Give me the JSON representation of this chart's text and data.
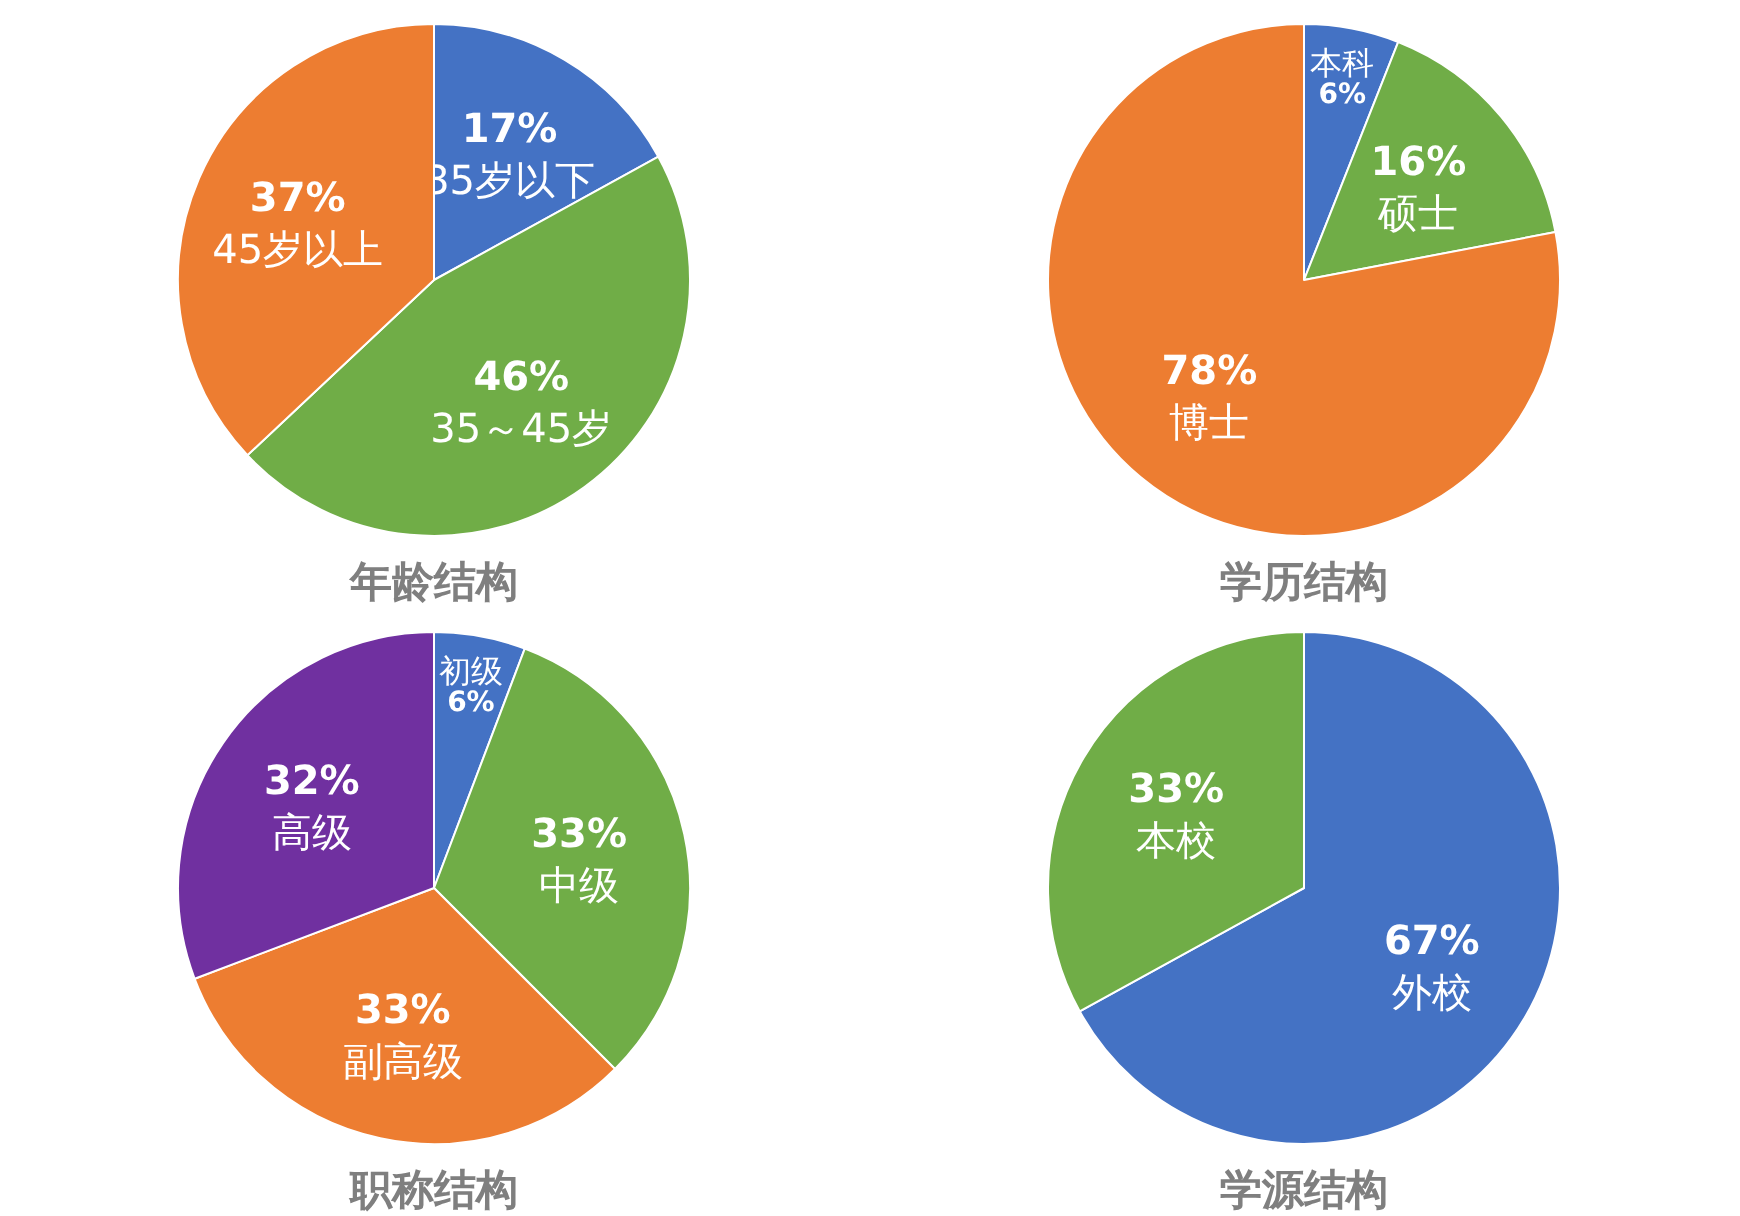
{
  "chart_data": [
    {
      "type": "pie",
      "title": "年龄结构",
      "categories": [
        "35岁以下",
        "35～45岁",
        "45岁以上"
      ],
      "values": [
        17,
        46,
        37
      ],
      "colors": [
        "#4472c4",
        "#70ad47",
        "#ed7d31"
      ],
      "value_labels": [
        "17%",
        "46%",
        "37%"
      ]
    },
    {
      "type": "pie",
      "title": "学历结构",
      "categories": [
        "本科",
        "硕士",
        "博士"
      ],
      "values": [
        6,
        16,
        78
      ],
      "colors": [
        "#4472c4",
        "#70ad47",
        "#ed7d31"
      ],
      "value_labels": [
        "6%",
        "16%",
        "78%"
      ]
    },
    {
      "type": "pie",
      "title": "职称结构",
      "categories": [
        "初级",
        "中级",
        "副高级",
        "高级"
      ],
      "values": [
        6,
        33,
        33,
        32
      ],
      "colors": [
        "#4472c4",
        "#70ad47",
        "#ed7d31",
        "#7030a0"
      ],
      "value_labels": [
        "6%",
        "33%",
        "33%",
        "32%"
      ]
    },
    {
      "type": "pie",
      "title": "学源结构",
      "categories": [
        "外校",
        "本校"
      ],
      "values": [
        67,
        33
      ],
      "colors": [
        "#4472c4",
        "#70ad47"
      ],
      "value_labels": [
        "67%",
        "33%"
      ]
    }
  ]
}
